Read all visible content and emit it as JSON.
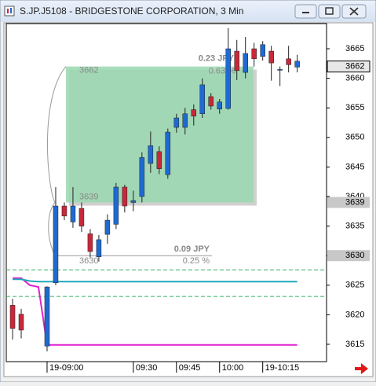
{
  "window": {
    "title": "S.JP.J5108 - BRIDGESTONE CORPORATION, 3 Min"
  },
  "chart_data": {
    "type": "candlestick",
    "up_color": "#1e6ad2",
    "down_color": "#c8283a",
    "open": [
      3621.6,
      3620.1,
      null,
      null,
      3614.7,
      3625.4,
      3638.4,
      3635.7,
      3638,
      3633.7,
      3629.8,
      3633.6,
      3635.3,
      3641.6,
      3639,
      3640,
      3645.6,
      3647.6,
      3643.7,
      3651.7,
      3651.7,
      3654.7,
      3654,
      3656.9,
      3654.8,
      3654.9,
      3664.6,
      3661,
      3665,
      3663.7,
      3664.6,
      3661.5,
      3663.3,
      3661.9
    ],
    "high": [
      3622.7,
      3621,
      null,
      null,
      3624.8,
      3641.6,
      3639,
      3641.6,
      3639,
      3634.5,
      3633.5,
      3637,
      3642.3,
      3642,
      3641,
      3647.5,
      3651,
      3648.5,
      3651.5,
      3654,
      3655,
      3655.6,
      3660,
      3657.5,
      3656.5,
      3668.5,
      3666.5,
      3667,
      3666,
      3666.3,
      3665.5,
      3662,
      3665.5,
      3664
    ],
    "low": [
      3615.8,
      3616,
      null,
      null,
      3613.8,
      3625,
      3636,
      3634.7,
      3634,
      3629.7,
      3629,
      3632,
      3634.5,
      3637.3,
      3637.5,
      3639,
      3644,
      3643.8,
      3643,
      3650.8,
      3650.5,
      3652,
      3653.3,
      3654.7,
      3654,
      3654.7,
      3659.7,
      3660,
      3662,
      3663,
      3659.6,
      3658.7,
      3661,
      3661
    ],
    "close": [
      3617.7,
      3617.4,
      null,
      null,
      3624.7,
      3638.4,
      3636.7,
      3638.4,
      3635,
      3630.7,
      3632.7,
      3636,
      3641.6,
      3638.4,
      3639.3,
      3646.6,
      3648.6,
      3644.7,
      3650.9,
      3653.3,
      3654,
      3653.6,
      3658.9,
      3655.3,
      3656,
      3665,
      3661.3,
      3664.2,
      3663.3,
      3665.7,
      3662.6,
      3661.5,
      3662.3,
      3662.9
    ],
    "lines": [
      {
        "color": "#e020d0",
        "values": [
          3626.2,
          3626.2,
          3625,
          3624.7,
          3614.9,
          3614.9,
          3614.9,
          3614.9,
          3614.9,
          3614.9,
          3614.9,
          3614.9,
          3614.9,
          3614.9,
          3614.9,
          3614.9,
          3614.9,
          3614.9,
          3614.9,
          3614.9,
          3614.9,
          3614.9,
          3614.9,
          3614.9,
          3614.9,
          3614.9,
          3614.9,
          3614.9,
          3614.9,
          3614.9,
          3614.9,
          3614.9,
          3614.9,
          3614.9
        ]
      },
      {
        "color": "#20a8b8",
        "values": [
          3626,
          3626,
          3625.7,
          3625.6,
          3625.6,
          3625.6,
          3625.6,
          3625.6,
          3625.6,
          3625.6,
          3625.6,
          3625.6,
          3625.6,
          3625.6,
          3625.6,
          3625.6,
          3625.6,
          3625.6,
          3625.6,
          3625.6,
          3625.6,
          3625.6,
          3625.6,
          3625.6,
          3625.6,
          3625.6,
          3625.6,
          3625.6,
          3625.6,
          3625.6,
          3625.6,
          3625.6,
          3625.6,
          3625.6
        ]
      }
    ],
    "bands": [
      3627.6,
      3623.1
    ],
    "band_color": "#30b060",
    "xlim": [
      -0.73,
      36.4
    ],
    "xticks": [
      {
        "value": 4,
        "label": "19-09:00"
      },
      {
        "value": 14,
        "label": "09:30"
      },
      {
        "value": 19,
        "label": "09:45"
      },
      {
        "value": 24,
        "label": "10:00"
      },
      {
        "value": 29,
        "label": "19-10:15"
      }
    ],
    "ylim": [
      3612.07,
      3669.26
    ],
    "yticks": [
      3615,
      3620,
      3625,
      3630,
      3635,
      3640,
      3645,
      3650,
      3655,
      3660,
      3665
    ],
    "price_tags": [
      3662,
      3639,
      3630
    ],
    "measure_box": {
      "top": 3662,
      "bottom": 3639,
      "change": "0.23 JPY",
      "percent": "0.63 %"
    },
    "measure_line": {
      "price": 3630,
      "change": "0.09 JPY",
      "percent": "0.25 %"
    }
  }
}
